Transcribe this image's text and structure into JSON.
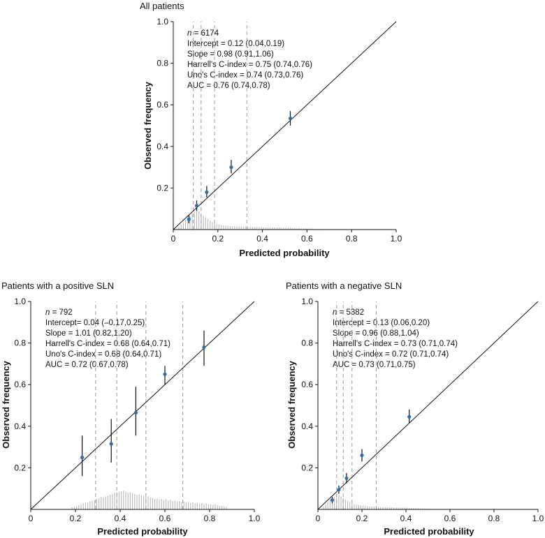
{
  "chart_data": [
    {
      "type": "scatter",
      "title": "All patients",
      "xlabel": "Predicted probability",
      "ylabel": "Observed frequency",
      "xlim": [
        0,
        1
      ],
      "ylim": [
        0,
        1
      ],
      "x_ticks": [
        "0",
        "0.2",
        "0.4",
        "0.6",
        "0.8",
        "1.0"
      ],
      "y_ticks": [
        "0.2",
        "0.4",
        "0.6",
        "0.8",
        "1.0"
      ],
      "stats": {
        "n_prefix": "n",
        "n_value": " = 6174",
        "lines": [
          "Intercept = 0.12 (0.04,0.19)",
          "Slope = 0.98 (0.91,1.06)",
          "Harrell's C-index = 0.75 (0.74,0.76)",
          "Uno's C-index = 0.74 (0.73,0.76)",
          "AUC = 0.76 (0.74,0.78)"
        ]
      },
      "points": [
        {
          "x": 0.07,
          "y": 0.05,
          "lo": 0.03,
          "hi": 0.07
        },
        {
          "x": 0.105,
          "y": 0.115,
          "lo": 0.09,
          "hi": 0.14
        },
        {
          "x": 0.15,
          "y": 0.18,
          "lo": 0.155,
          "hi": 0.21
        },
        {
          "x": 0.26,
          "y": 0.3,
          "lo": 0.27,
          "hi": 0.335
        },
        {
          "x": 0.525,
          "y": 0.535,
          "lo": 0.5,
          "hi": 0.57
        }
      ],
      "quantile_lines": [
        0.09,
        0.125,
        0.185,
        0.33
      ],
      "histogram": {
        "bin_start": 0.02,
        "bin_width": 0.01,
        "heights": [
          0.015,
          0.025,
          0.035,
          0.045,
          0.055,
          0.065,
          0.078,
          0.088,
          0.092,
          0.086,
          0.078,
          0.068,
          0.058,
          0.05,
          0.042,
          0.036,
          0.031,
          0.027,
          0.024,
          0.022,
          0.02,
          0.019,
          0.018,
          0.017,
          0.016,
          0.016,
          0.015,
          0.015,
          0.014,
          0.014,
          0.014,
          0.013,
          0.013,
          0.013,
          0.012,
          0.012,
          0.012,
          0.012,
          0.011,
          0.011,
          0.011,
          0.011,
          0.01,
          0.01,
          0.01,
          0.01,
          0.01,
          0.009,
          0.009,
          0.009,
          0.008,
          0.008,
          0.008,
          0.007,
          0.007,
          0.006,
          0.006,
          0.005,
          0.005,
          0.004,
          0.004,
          0.003,
          0.003,
          0.003,
          0.002,
          0.002,
          0.002,
          0.002,
          0.002,
          0.001
        ]
      }
    },
    {
      "type": "scatter",
      "title": "Patients with a positive SLN",
      "xlabel": "Predicted probability",
      "ylabel": "Observed frequency",
      "xlim": [
        0,
        1
      ],
      "ylim": [
        0,
        1
      ],
      "x_ticks": [
        "0",
        "0.2",
        "0.4",
        "0.6",
        "0.8",
        "1.0"
      ],
      "y_ticks": [
        "0.2",
        "0.4",
        "0.6",
        "0.8",
        "1.0"
      ],
      "stats": {
        "n_prefix": "n",
        "n_value": " = 792",
        "lines": [
          "Intercept= 0.04 (–0.17,0.25)",
          "Slope = 1.01 (0.82,1.20)",
          "Harrell's C-index = 0.68 (0.64,0.71)",
          "Uno's C-index = 0.68 (0.64,0.71)",
          "AUC = 0.72 (0.67,0.78)"
        ]
      },
      "points": [
        {
          "x": 0.23,
          "y": 0.25,
          "lo": 0.16,
          "hi": 0.355
        },
        {
          "x": 0.36,
          "y": 0.315,
          "lo": 0.225,
          "hi": 0.435
        },
        {
          "x": 0.47,
          "y": 0.465,
          "lo": 0.355,
          "hi": 0.59
        },
        {
          "x": 0.6,
          "y": 0.65,
          "lo": 0.6,
          "hi": 0.69
        },
        {
          "x": 0.775,
          "y": 0.78,
          "lo": 0.69,
          "hi": 0.86
        }
      ],
      "quantile_lines": [
        0.29,
        0.385,
        0.515,
        0.68
      ],
      "histogram": {
        "bin_start": 0.18,
        "bin_width": 0.01,
        "heights": [
          0.01,
          0.012,
          0.015,
          0.02,
          0.025,
          0.03,
          0.032,
          0.035,
          0.038,
          0.04,
          0.045,
          0.05,
          0.055,
          0.06,
          0.058,
          0.062,
          0.065,
          0.07,
          0.075,
          0.08,
          0.082,
          0.085,
          0.088,
          0.09,
          0.085,
          0.08,
          0.082,
          0.078,
          0.075,
          0.07,
          0.072,
          0.068,
          0.065,
          0.06,
          0.062,
          0.058,
          0.055,
          0.05,
          0.052,
          0.048,
          0.05,
          0.045,
          0.048,
          0.042,
          0.045,
          0.04,
          0.042,
          0.038,
          0.04,
          0.035,
          0.038,
          0.034,
          0.036,
          0.032,
          0.034,
          0.03,
          0.032,
          0.028,
          0.03,
          0.026,
          0.028,
          0.024,
          0.026,
          0.022,
          0.024,
          0.02,
          0.018,
          0.016,
          0.014,
          0.012
        ]
      }
    },
    {
      "type": "scatter",
      "title": "Patients with a negative SLN",
      "xlabel": "Predicted probability",
      "ylabel": "Observed frequency",
      "xlim": [
        0,
        1
      ],
      "ylim": [
        0,
        1
      ],
      "x_ticks": [
        "0",
        "0.2",
        "0.4",
        "0.6",
        "0.8",
        "1.0"
      ],
      "y_ticks": [
        "0.2",
        "0.4",
        "0.6",
        "0.8",
        "1.0"
      ],
      "stats": {
        "n_prefix": "n",
        "n_value": " = 5382",
        "lines": [
          "Intercept = 0.13 (0.06,0.20)",
          "Slope = 0.96 (0.88,1.04)",
          "Harrell's C-index = 0.73 (0.71,0.74)",
          "Uno's C-index = 0.72 (0.71,0.74)",
          "AUC = 0.73 (0.71,0.75)"
        ]
      },
      "points": [
        {
          "x": 0.065,
          "y": 0.045,
          "lo": 0.03,
          "hi": 0.06
        },
        {
          "x": 0.095,
          "y": 0.095,
          "lo": 0.075,
          "hi": 0.115
        },
        {
          "x": 0.13,
          "y": 0.15,
          "lo": 0.125,
          "hi": 0.175
        },
        {
          "x": 0.2,
          "y": 0.26,
          "lo": 0.23,
          "hi": 0.29
        },
        {
          "x": 0.415,
          "y": 0.445,
          "lo": 0.415,
          "hi": 0.48
        }
      ],
      "quantile_lines": [
        0.085,
        0.115,
        0.155,
        0.265
      ],
      "histogram": {
        "bin_start": 0.02,
        "bin_width": 0.01,
        "heights": [
          0.015,
          0.025,
          0.035,
          0.045,
          0.055,
          0.06,
          0.065,
          0.068,
          0.062,
          0.055,
          0.048,
          0.042,
          0.036,
          0.031,
          0.027,
          0.024,
          0.021,
          0.019,
          0.017,
          0.016,
          0.015,
          0.014,
          0.013,
          0.013,
          0.012,
          0.012,
          0.011,
          0.011,
          0.011,
          0.01,
          0.01,
          0.01,
          0.009,
          0.009,
          0.009,
          0.008,
          0.008,
          0.008,
          0.007,
          0.007,
          0.007,
          0.006,
          0.006,
          0.005,
          0.005,
          0.004,
          0.004,
          0.003,
          0.003,
          0.002
        ]
      }
    }
  ]
}
